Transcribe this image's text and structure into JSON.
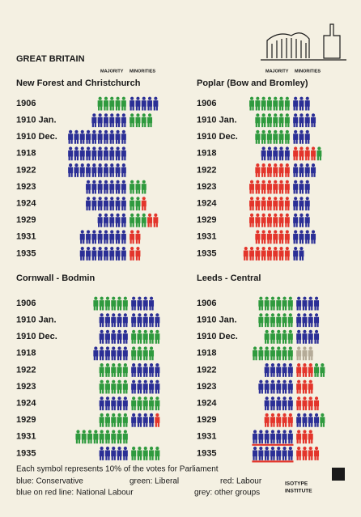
{
  "title": "GREAT BRITAIN",
  "column_headers": [
    "MAJORITY",
    "MINORITIES"
  ],
  "chart_data": [
    {
      "type": "isotype",
      "title": "New Forest and Christchurch",
      "categories": [
        "1906",
        "1910 Jan.",
        "1910 Dec.",
        "1918",
        "1922",
        "1923",
        "1924",
        "1929",
        "1931",
        "1935"
      ],
      "rows": [
        {
          "majority": [
            {
              "color": "#2f9a3e",
              "symbols": 5
            }
          ],
          "minorities": [
            {
              "color": "#2b2f96",
              "symbols": 5
            }
          ]
        },
        {
          "majority": [
            {
              "color": "#2b2f96",
              "symbols": 6
            }
          ],
          "minorities": [
            {
              "color": "#2f9a3e",
              "symbols": 4
            }
          ]
        },
        {
          "majority": [
            {
              "color": "#2b2f96",
              "symbols": 10
            }
          ],
          "minorities": []
        },
        {
          "majority": [
            {
              "color": "#2b2f96",
              "symbols": 10
            }
          ],
          "minorities": []
        },
        {
          "majority": [
            {
              "color": "#2b2f96",
              "symbols": 10
            }
          ],
          "minorities": []
        },
        {
          "majority": [
            {
              "color": "#2b2f96",
              "symbols": 7
            }
          ],
          "minorities": [
            {
              "color": "#2f9a3e",
              "symbols": 3
            }
          ]
        },
        {
          "majority": [
            {
              "color": "#2b2f96",
              "symbols": 7
            }
          ],
          "minorities": [
            {
              "color": "#2f9a3e",
              "symbols": 2
            },
            {
              "color": "#e3352b",
              "symbols": 1
            }
          ]
        },
        {
          "majority": [
            {
              "color": "#2b2f96",
              "symbols": 5
            }
          ],
          "minorities": [
            {
              "color": "#2f9a3e",
              "symbols": 3
            },
            {
              "color": "#e3352b",
              "symbols": 2
            }
          ]
        },
        {
          "majority": [
            {
              "color": "#2b2f96",
              "symbols": 8
            }
          ],
          "minorities": [
            {
              "color": "#e3352b",
              "symbols": 2
            }
          ]
        },
        {
          "majority": [
            {
              "color": "#2b2f96",
              "symbols": 8
            }
          ],
          "minorities": [
            {
              "color": "#e3352b",
              "symbols": 2
            }
          ]
        }
      ]
    },
    {
      "type": "isotype",
      "title": "Poplar (Bow and Bromley)",
      "categories": [
        "1906",
        "1910 Jan.",
        "1910 Dec.",
        "1918",
        "1922",
        "1923",
        "1924",
        "1929",
        "1931",
        "1935"
      ],
      "rows": [
        {
          "majority": [
            {
              "color": "#2f9a3e",
              "symbols": 7
            }
          ],
          "minorities": [
            {
              "color": "#2b2f96",
              "symbols": 3
            }
          ]
        },
        {
          "majority": [
            {
              "color": "#2f9a3e",
              "symbols": 6
            }
          ],
          "minorities": [
            {
              "color": "#2b2f96",
              "symbols": 4
            }
          ]
        },
        {
          "majority": [
            {
              "color": "#2f9a3e",
              "symbols": 6
            }
          ],
          "minorities": [
            {
              "color": "#2b2f96",
              "symbols": 3
            }
          ]
        },
        {
          "majority": [
            {
              "color": "#2b2f96",
              "symbols": 5
            }
          ],
          "minorities": [
            {
              "color": "#e3352b",
              "symbols": 4
            },
            {
              "color": "#2f9a3e",
              "symbols": 1
            }
          ]
        },
        {
          "majority": [
            {
              "color": "#e3352b",
              "symbols": 6
            }
          ],
          "minorities": [
            {
              "color": "#2b2f96",
              "symbols": 4
            }
          ]
        },
        {
          "majority": [
            {
              "color": "#e3352b",
              "symbols": 7
            }
          ],
          "minorities": [
            {
              "color": "#2b2f96",
              "symbols": 3
            }
          ]
        },
        {
          "majority": [
            {
              "color": "#e3352b",
              "symbols": 7
            }
          ],
          "minorities": [
            {
              "color": "#2b2f96",
              "symbols": 3
            }
          ]
        },
        {
          "majority": [
            {
              "color": "#e3352b",
              "symbols": 7
            }
          ],
          "minorities": [
            {
              "color": "#2b2f96",
              "symbols": 3
            }
          ]
        },
        {
          "majority": [
            {
              "color": "#e3352b",
              "symbols": 6
            }
          ],
          "minorities": [
            {
              "color": "#2b2f96",
              "symbols": 4
            }
          ]
        },
        {
          "majority": [
            {
              "color": "#e3352b",
              "symbols": 8
            }
          ],
          "minorities": [
            {
              "color": "#2b2f96",
              "symbols": 2
            }
          ]
        }
      ]
    },
    {
      "type": "isotype",
      "title": "Cornwall - Bodmin",
      "categories": [
        "1906",
        "1910 Jan.",
        "1910 Dec.",
        "1918",
        "1922",
        "1923",
        "1924",
        "1929",
        "1931",
        "1935"
      ],
      "rows": [
        {
          "majority": [
            {
              "color": "#2f9a3e",
              "symbols": 6
            }
          ],
          "minorities": [
            {
              "color": "#2b2f96",
              "symbols": 4
            }
          ]
        },
        {
          "majority": [
            {
              "color": "#2b2f96",
              "symbols": 5
            }
          ],
          "minorities": [
            {
              "color": "#2b2f96",
              "symbols": 5
            }
          ]
        },
        {
          "majority": [
            {
              "color": "#2b2f96",
              "symbols": 5
            }
          ],
          "minorities": [
            {
              "color": "#2f9a3e",
              "symbols": 5
            }
          ]
        },
        {
          "majority": [
            {
              "color": "#2b2f96",
              "symbols": 6
            }
          ],
          "minorities": [
            {
              "color": "#2f9a3e",
              "symbols": 4
            }
          ]
        },
        {
          "majority": [
            {
              "color": "#2f9a3e",
              "symbols": 5
            }
          ],
          "minorities": [
            {
              "color": "#2b2f96",
              "symbols": 5
            }
          ]
        },
        {
          "majority": [
            {
              "color": "#2f9a3e",
              "symbols": 5
            }
          ],
          "minorities": [
            {
              "color": "#2b2f96",
              "symbols": 5
            }
          ]
        },
        {
          "majority": [
            {
              "color": "#2b2f96",
              "symbols": 5
            }
          ],
          "minorities": [
            {
              "color": "#2f9a3e",
              "symbols": 5
            }
          ]
        },
        {
          "majority": [
            {
              "color": "#2f9a3e",
              "symbols": 5
            }
          ],
          "minorities": [
            {
              "color": "#2b2f96",
              "symbols": 4
            },
            {
              "color": "#e3352b",
              "symbols": 1
            }
          ]
        },
        {
          "majority": [
            {
              "color": "#2f9a3e",
              "symbols": 9
            }
          ],
          "minorities": []
        },
        {
          "majority": [
            {
              "color": "#2b2f96",
              "symbols": 5
            }
          ],
          "minorities": [
            {
              "color": "#2f9a3e",
              "symbols": 5
            }
          ]
        }
      ]
    },
    {
      "type": "isotype",
      "title": "Leeds - Central",
      "categories": [
        "1906",
        "1910 Jan.",
        "1910 Dec.",
        "1918",
        "1922",
        "1923",
        "1924",
        "1929",
        "1931",
        "1935"
      ],
      "rows": [
        {
          "majority": [
            {
              "color": "#2f9a3e",
              "symbols": 6
            }
          ],
          "minorities": [
            {
              "color": "#2b2f96",
              "symbols": 4
            }
          ]
        },
        {
          "majority": [
            {
              "color": "#2f9a3e",
              "symbols": 6
            }
          ],
          "minorities": [
            {
              "color": "#2b2f96",
              "symbols": 4
            }
          ]
        },
        {
          "majority": [
            {
              "color": "#2f9a3e",
              "symbols": 5
            }
          ],
          "minorities": [
            {
              "color": "#2b2f96",
              "symbols": 4
            }
          ]
        },
        {
          "majority": [
            {
              "color": "#2f9a3e",
              "symbols": 7
            }
          ],
          "minorities": [
            {
              "color": "#b5ab98",
              "symbols": 3
            }
          ]
        },
        {
          "majority": [
            {
              "color": "#2b2f96",
              "symbols": 5
            }
          ],
          "minorities": [
            {
              "color": "#e3352b",
              "symbols": 3
            },
            {
              "color": "#2f9a3e",
              "symbols": 2
            }
          ]
        },
        {
          "majority": [
            {
              "color": "#2b2f96",
              "symbols": 6
            }
          ],
          "minorities": [
            {
              "color": "#e3352b",
              "symbols": 3
            }
          ]
        },
        {
          "majority": [
            {
              "color": "#2b2f96",
              "symbols": 5
            }
          ],
          "minorities": [
            {
              "color": "#e3352b",
              "symbols": 4
            }
          ]
        },
        {
          "majority": [
            {
              "color": "#e3352b",
              "symbols": 5
            }
          ],
          "minorities": [
            {
              "color": "#2b2f96",
              "symbols": 4
            },
            {
              "color": "#2f9a3e",
              "symbols": 1
            }
          ]
        },
        {
          "majority": [
            {
              "color": "#2b2f96",
              "underline": "#e3352b",
              "symbols": 7
            }
          ],
          "minorities": [
            {
              "color": "#e3352b",
              "symbols": 3
            }
          ]
        },
        {
          "majority": [
            {
              "color": "#2b2f96",
              "underline": "#e3352b",
              "symbols": 7
            }
          ],
          "minorities": [
            {
              "color": "#e3352b",
              "symbols": 4
            }
          ]
        }
      ]
    }
  ],
  "footer": {
    "note": "Each symbol represents 10% of the votes for Parliament",
    "legend": [
      "blue: Conservative",
      "green: Liberal",
      "red: Labour",
      "blue on red line: National Labour",
      "grey: other groups"
    ],
    "institute": [
      "ISOTYPE",
      "INSTITUTE"
    ]
  }
}
